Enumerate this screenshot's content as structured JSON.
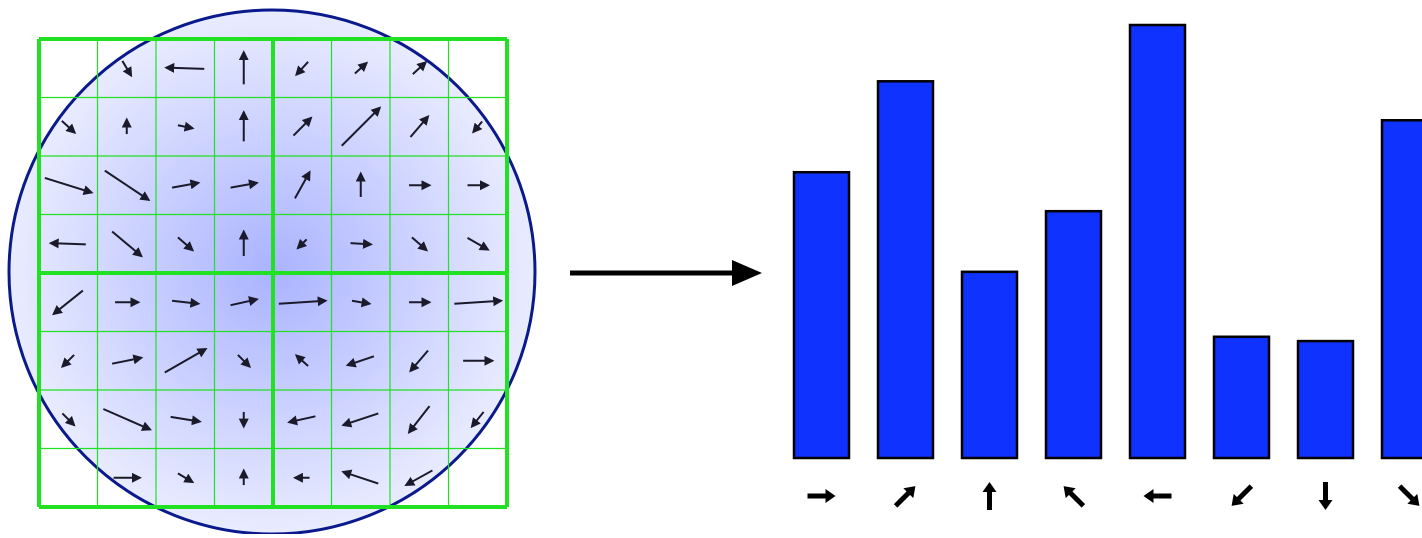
{
  "colors": {
    "circle_edge": "#0a1a8c",
    "circle_fill_center": "#aab3ff",
    "circle_fill_edge": "#e9ecff",
    "grid_green": "#22e022",
    "bar_fill": "#0f32ff",
    "bar_stroke": "#000000",
    "arrow": "#1a1a2a"
  },
  "descriptor": {
    "grid_cells": 8,
    "gradient_arrows": [
      {
        "row": 0,
        "col": 1,
        "dx": 0.15,
        "dy": 0.25
      },
      {
        "row": 0,
        "col": 2,
        "dx": -0.65,
        "dy": -0.02
      },
      {
        "row": 0,
        "col": 3,
        "dx": 0.0,
        "dy": -0.55
      },
      {
        "row": 0,
        "col": 4,
        "dx": -0.2,
        "dy": 0.22
      },
      {
        "row": 0,
        "col": 5,
        "dx": 0.2,
        "dy": -0.18
      },
      {
        "row": 0,
        "col": 6,
        "dx": 0.22,
        "dy": -0.2
      },
      {
        "row": 1,
        "col": 0,
        "dx": 0.22,
        "dy": 0.2
      },
      {
        "row": 1,
        "col": 1,
        "dx": 0.0,
        "dy": -0.25
      },
      {
        "row": 1,
        "col": 2,
        "dx": 0.25,
        "dy": 0.05
      },
      {
        "row": 1,
        "col": 3,
        "dx": 0.0,
        "dy": -0.5
      },
      {
        "row": 1,
        "col": 4,
        "dx": 0.3,
        "dy": -0.3
      },
      {
        "row": 1,
        "col": 5,
        "dx": 0.65,
        "dy": -0.65
      },
      {
        "row": 1,
        "col": 6,
        "dx": 0.3,
        "dy": -0.35
      },
      {
        "row": 1,
        "col": 7,
        "dx": -0.15,
        "dy": 0.18
      },
      {
        "row": 2,
        "col": 0,
        "dx": 0.8,
        "dy": 0.25
      },
      {
        "row": 2,
        "col": 1,
        "dx": 0.75,
        "dy": 0.5
      },
      {
        "row": 2,
        "col": 2,
        "dx": 0.45,
        "dy": -0.08
      },
      {
        "row": 2,
        "col": 3,
        "dx": 0.45,
        "dy": -0.08
      },
      {
        "row": 2,
        "col": 4,
        "dx": 0.25,
        "dy": -0.45
      },
      {
        "row": 2,
        "col": 5,
        "dx": 0.0,
        "dy": -0.4
      },
      {
        "row": 2,
        "col": 6,
        "dx": 0.35,
        "dy": 0.0
      },
      {
        "row": 2,
        "col": 7,
        "dx": 0.35,
        "dy": 0.0
      },
      {
        "row": 3,
        "col": 0,
        "dx": -0.6,
        "dy": -0.02
      },
      {
        "row": 3,
        "col": 1,
        "dx": 0.5,
        "dy": 0.42
      },
      {
        "row": 3,
        "col": 2,
        "dx": 0.25,
        "dy": 0.22
      },
      {
        "row": 3,
        "col": 3,
        "dx": 0.0,
        "dy": -0.42
      },
      {
        "row": 3,
        "col": 4,
        "dx": -0.15,
        "dy": 0.15
      },
      {
        "row": 3,
        "col": 5,
        "dx": 0.35,
        "dy": 0.02
      },
      {
        "row": 3,
        "col": 6,
        "dx": 0.25,
        "dy": 0.22
      },
      {
        "row": 3,
        "col": 7,
        "dx": 0.35,
        "dy": 0.2
      },
      {
        "row": 4,
        "col": 0,
        "dx": -0.5,
        "dy": 0.4
      },
      {
        "row": 4,
        "col": 1,
        "dx": 0.4,
        "dy": 0.0
      },
      {
        "row": 4,
        "col": 2,
        "dx": 0.45,
        "dy": 0.05
      },
      {
        "row": 4,
        "col": 3,
        "dx": 0.45,
        "dy": -0.1
      },
      {
        "row": 4,
        "col": 4,
        "dx": 0.8,
        "dy": -0.05
      },
      {
        "row": 4,
        "col": 5,
        "dx": 0.3,
        "dy": 0.05
      },
      {
        "row": 4,
        "col": 6,
        "dx": 0.35,
        "dy": 0.0
      },
      {
        "row": 4,
        "col": 7,
        "dx": 0.8,
        "dy": -0.05
      },
      {
        "row": 5,
        "col": 0,
        "dx": -0.2,
        "dy": 0.2
      },
      {
        "row": 5,
        "col": 1,
        "dx": 0.5,
        "dy": -0.1
      },
      {
        "row": 5,
        "col": 2,
        "dx": 0.7,
        "dy": -0.4
      },
      {
        "row": 5,
        "col": 3,
        "dx": 0.2,
        "dy": 0.2
      },
      {
        "row": 5,
        "col": 4,
        "dx": -0.2,
        "dy": -0.18
      },
      {
        "row": 5,
        "col": 5,
        "dx": -0.45,
        "dy": 0.15
      },
      {
        "row": 5,
        "col": 6,
        "dx": -0.3,
        "dy": 0.35
      },
      {
        "row": 5,
        "col": 7,
        "dx": 0.5,
        "dy": 0.0
      },
      {
        "row": 6,
        "col": 0,
        "dx": 0.2,
        "dy": 0.2
      },
      {
        "row": 6,
        "col": 1,
        "dx": 0.8,
        "dy": 0.35
      },
      {
        "row": 6,
        "col": 2,
        "dx": 0.5,
        "dy": 0.08
      },
      {
        "row": 6,
        "col": 3,
        "dx": 0.0,
        "dy": 0.25
      },
      {
        "row": 6,
        "col": 4,
        "dx": -0.45,
        "dy": 0.1
      },
      {
        "row": 6,
        "col": 5,
        "dx": -0.6,
        "dy": 0.2
      },
      {
        "row": 6,
        "col": 6,
        "dx": -0.35,
        "dy": 0.45
      },
      {
        "row": 6,
        "col": 7,
        "dx": -0.2,
        "dy": 0.25
      },
      {
        "row": 7,
        "col": 1,
        "dx": 0.45,
        "dy": 0.0
      },
      {
        "row": 7,
        "col": 2,
        "dx": 0.25,
        "dy": 0.15
      },
      {
        "row": 7,
        "col": 3,
        "dx": 0.0,
        "dy": -0.25
      },
      {
        "row": 7,
        "col": 4,
        "dx": -0.25,
        "dy": 0.0
      },
      {
        "row": 7,
        "col": 5,
        "dx": -0.6,
        "dy": -0.2
      },
      {
        "row": 7,
        "col": 6,
        "dx": -0.45,
        "dy": 0.25
      }
    ]
  },
  "chart_data": {
    "type": "bar",
    "categories": [
      "right-arrow-icon",
      "up-right-arrow-icon",
      "up-arrow-icon",
      "up-left-arrow-icon",
      "left-arrow-icon",
      "down-left-arrow-icon",
      "down-arrow-icon",
      "down-right-arrow-icon"
    ],
    "directions_deg": [
      0,
      45,
      90,
      135,
      180,
      225,
      270,
      315
    ],
    "values": [
      0.66,
      0.87,
      0.43,
      0.57,
      1.0,
      0.28,
      0.27,
      0.78
    ],
    "ylim": [
      0,
      1.0
    ],
    "title": "",
    "xlabel": "",
    "ylabel": ""
  }
}
